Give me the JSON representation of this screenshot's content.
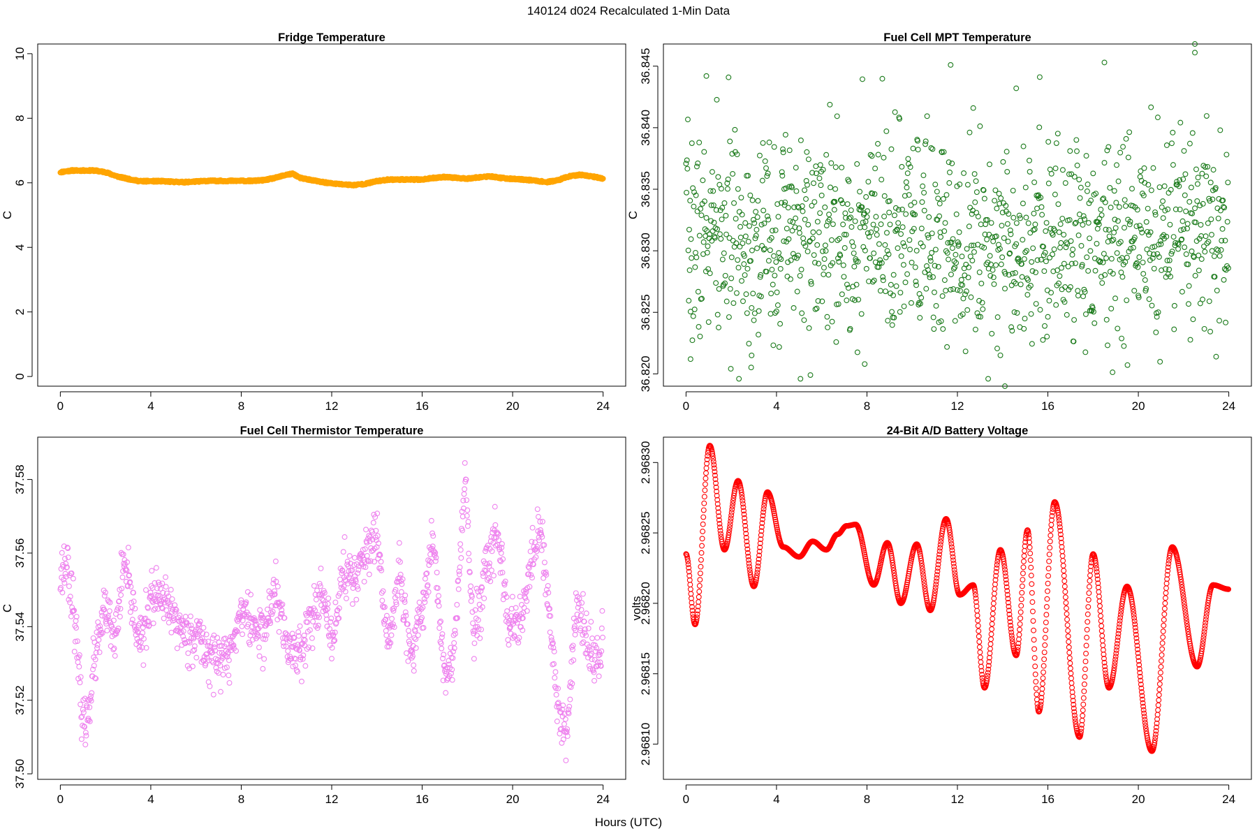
{
  "page": {
    "title": "140124   d024   Recalculated 1-Min Data",
    "xlabel": "Hours (UTC)"
  },
  "chart_data": [
    {
      "type": "scatter",
      "title": "Fridge Temperature",
      "ylabel": "C",
      "xlabel": "Hours (UTC)",
      "xlim": [
        -1,
        25
      ],
      "ylim": [
        -0.3,
        10.3
      ],
      "xticks": [
        0,
        4,
        8,
        12,
        16,
        20,
        24
      ],
      "yticks": [
        0,
        2,
        4,
        6,
        8,
        10
      ],
      "ytick_labels": [
        "0",
        "2",
        "4",
        "6",
        "8",
        "10"
      ],
      "color": "#ffa500",
      "marker": "open-circle",
      "x": [
        0,
        0.5,
        1,
        1.5,
        2,
        2.5,
        3,
        3.5,
        4,
        4.5,
        5,
        5.5,
        6,
        6.5,
        7,
        7.5,
        8,
        8.5,
        9,
        9.5,
        10,
        10.3,
        10.6,
        11,
        11.5,
        12,
        12.5,
        13,
        13.5,
        14,
        14.5,
        15,
        15.5,
        16,
        16.5,
        17,
        17.5,
        18,
        18.5,
        19,
        19.5,
        20,
        20.5,
        21,
        21.5,
        22,
        22.5,
        23,
        23.5,
        24
      ],
      "y": [
        6.33,
        6.38,
        6.38,
        6.38,
        6.33,
        6.2,
        6.12,
        6.05,
        6.05,
        6.05,
        6.03,
        6.02,
        6.04,
        6.06,
        6.06,
        6.06,
        6.06,
        6.06,
        6.08,
        6.15,
        6.25,
        6.28,
        6.15,
        6.1,
        6.03,
        5.98,
        5.95,
        5.93,
        5.97,
        6.05,
        6.1,
        6.1,
        6.1,
        6.1,
        6.15,
        6.18,
        6.15,
        6.13,
        6.17,
        6.2,
        6.15,
        6.12,
        6.1,
        6.07,
        6.02,
        6.08,
        6.2,
        6.25,
        6.2,
        6.13
      ]
    },
    {
      "type": "scatter",
      "title": "Fuel Cell MPT Temperature",
      "ylabel": "C",
      "xlabel": "Hours (UTC)",
      "xlim": [
        -1,
        25
      ],
      "ylim": [
        36.819,
        36.8468
      ],
      "xticks": [
        0,
        4,
        8,
        12,
        16,
        20,
        24
      ],
      "yticks": [
        36.82,
        36.825,
        36.83,
        36.835,
        36.84,
        36.845
      ],
      "ytick_labels": [
        "36.820",
        "36.825",
        "36.830",
        "36.835",
        "36.840",
        "36.845"
      ],
      "color": "#1a7a1a",
      "marker": "open-circle",
      "distribution": {
        "n": 1200,
        "center": 36.831,
        "spread": 0.0042,
        "min": 36.8188,
        "max": 36.847
      },
      "outliers": [
        [
          0.2,
          36.8212
        ],
        [
          0.9,
          36.8442
        ],
        [
          2.9,
          36.8215
        ],
        [
          7.9,
          36.8208
        ],
        [
          11.7,
          36.8451
        ],
        [
          14.1,
          36.819
        ],
        [
          14.6,
          36.8432
        ],
        [
          18.5,
          36.8453
        ],
        [
          22.5,
          36.8468
        ],
        [
          22.5,
          36.8461
        ]
      ]
    },
    {
      "type": "scatter",
      "title": "Fuel Cell Thermistor Temperature",
      "ylabel": "C",
      "xlabel": "Hours (UTC)",
      "xlim": [
        -1,
        25
      ],
      "ylim": [
        37.4985,
        37.5915
      ],
      "xticks": [
        0,
        4,
        8,
        12,
        16,
        20,
        24
      ],
      "yticks": [
        37.5,
        37.52,
        37.54,
        37.56,
        37.58
      ],
      "ytick_labels": [
        "37.50",
        "37.52",
        "37.54",
        "37.56",
        "37.58"
      ],
      "color": "#ee82ee",
      "marker": "open-circle",
      "x": [
        0,
        0.3,
        0.6,
        0.9,
        1.1,
        1.5,
        2,
        2.4,
        2.8,
        3.2,
        3.6,
        4,
        4.5,
        5,
        5.5,
        6,
        6.5,
        7,
        7.5,
        8,
        8.5,
        9,
        9.5,
        10,
        10.5,
        11,
        11.5,
        12,
        12.5,
        13,
        13.5,
        14,
        14.5,
        15,
        15.5,
        16,
        16.5,
        17,
        17.4,
        17.9,
        18.3,
        18.8,
        19.3,
        19.8,
        20.3,
        20.8,
        21.2,
        21.6,
        22,
        22.4,
        22.8,
        23.3,
        23.8,
        24
      ],
      "y": [
        37.554,
        37.558,
        37.545,
        37.52,
        37.512,
        37.53,
        37.545,
        37.535,
        37.557,
        37.545,
        37.535,
        37.548,
        37.547,
        37.543,
        37.538,
        37.538,
        37.533,
        37.531,
        37.532,
        37.545,
        37.54,
        37.538,
        37.55,
        37.535,
        37.533,
        37.54,
        37.55,
        37.535,
        37.555,
        37.553,
        37.56,
        37.563,
        37.535,
        37.555,
        37.53,
        37.545,
        37.565,
        37.525,
        37.532,
        37.58,
        37.535,
        37.555,
        37.565,
        37.54,
        37.54,
        37.555,
        37.568,
        37.545,
        37.518,
        37.51,
        37.545,
        37.535,
        37.53,
        37.54
      ]
    },
    {
      "type": "scatter",
      "title": "24-Bit A/D Battery Voltage",
      "ylabel": "volts",
      "xlabel": "Hours (UTC)",
      "xlim": [
        -1,
        25
      ],
      "ylim": [
        2.968075,
        2.968318
      ],
      "xticks": [
        0,
        4,
        8,
        12,
        16,
        20,
        24
      ],
      "yticks": [
        2.9681,
        2.96815,
        2.9682,
        2.96825,
        2.9683
      ],
      "ytick_labels": [
        "2.96810",
        "2.96815",
        "2.96820",
        "2.96825",
        "2.96830"
      ],
      "color": "#ff0000",
      "marker": "open-circle",
      "x": [
        0,
        0.4,
        1.05,
        1.7,
        2.3,
        3.0,
        3.6,
        4.3,
        5.0,
        5.6,
        6.2,
        6.7,
        7.1,
        7.5,
        8.3,
        8.9,
        9.5,
        10.2,
        10.8,
        11.5,
        12.1,
        12.7,
        13.2,
        13.9,
        14.6,
        15.1,
        15.6,
        16.3,
        17.4,
        18.0,
        18.7,
        19.5,
        20.6,
        21.5,
        22.6,
        23.3,
        24.0
      ]
    }
  ]
}
